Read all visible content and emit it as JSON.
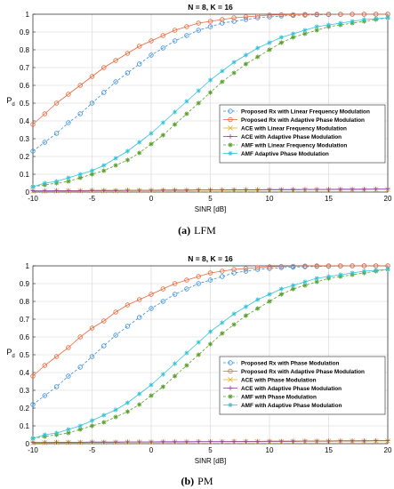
{
  "figure": {
    "captions": [
      {
        "label": "(a)",
        "text": "LFM"
      },
      {
        "label": "(b)",
        "text": "PM"
      }
    ]
  },
  "chart_data": [
    {
      "type": "line",
      "title": "N = 8, K = 16",
      "xlabel": "SINR [dB]",
      "ylabel": "P",
      "ylabel_subscript": "d",
      "xlim": [
        -10,
        20
      ],
      "ylim": [
        0,
        1
      ],
      "xticks": [
        -10,
        -5,
        0,
        5,
        10,
        15,
        20
      ],
      "yticks": [
        0,
        0.1,
        0.2,
        0.3,
        0.4,
        0.5,
        0.6,
        0.7,
        0.8,
        0.9,
        1
      ],
      "grid": true,
      "legend_position": "center-right",
      "x": [
        -10,
        -9,
        -8,
        -7,
        -6,
        -5,
        -4,
        -3,
        -2,
        -1,
        0,
        1,
        2,
        3,
        4,
        5,
        6,
        7,
        8,
        9,
        10,
        11,
        12,
        13,
        14,
        15,
        16,
        17,
        18,
        19,
        20
      ],
      "series": [
        {
          "name": "Proposed Rx with Linear Frequency Modulation",
          "color": "#3b8fd6",
          "marker": "circle",
          "dash": "3,2",
          "values": [
            0.23,
            0.28,
            0.33,
            0.39,
            0.44,
            0.5,
            0.56,
            0.62,
            0.67,
            0.72,
            0.77,
            0.81,
            0.85,
            0.88,
            0.91,
            0.93,
            0.95,
            0.96,
            0.97,
            0.98,
            0.985,
            0.99,
            0.993,
            0.995,
            0.997,
            0.998,
            0.999,
            1.0,
            1.0,
            1.0,
            1.0
          ]
        },
        {
          "name": "Proposed Rx with Adaptive Phase Modulation",
          "color": "#e8683a",
          "marker": "circle",
          "dash": "",
          "values": [
            0.38,
            0.44,
            0.5,
            0.55,
            0.6,
            0.65,
            0.7,
            0.74,
            0.78,
            0.82,
            0.85,
            0.88,
            0.91,
            0.93,
            0.95,
            0.96,
            0.97,
            0.98,
            0.985,
            0.99,
            0.995,
            0.997,
            0.998,
            0.999,
            1.0,
            1.0,
            1.0,
            1.0,
            1.0,
            1.0,
            1.0
          ]
        },
        {
          "name": "ACE with Linear Frequency Modulation",
          "color": "#e0b020",
          "marker": "cross",
          "dash": "",
          "values": [
            0.005,
            0.005,
            0.006,
            0.006,
            0.006,
            0.007,
            0.007,
            0.007,
            0.008,
            0.008,
            0.008,
            0.009,
            0.009,
            0.009,
            0.01,
            0.01,
            0.01,
            0.011,
            0.011,
            0.011,
            0.012,
            0.012,
            0.012,
            0.013,
            0.013,
            0.013,
            0.014,
            0.014,
            0.014,
            0.015,
            0.015
          ]
        },
        {
          "name": "ACE with Adaptive Phase Modulation",
          "color": "#8a3fa0",
          "marker": "plus",
          "dash": "",
          "values": [
            0.007,
            0.007,
            0.008,
            0.008,
            0.008,
            0.009,
            0.009,
            0.009,
            0.01,
            0.01,
            0.01,
            0.011,
            0.011,
            0.011,
            0.012,
            0.012,
            0.012,
            0.013,
            0.013,
            0.013,
            0.014,
            0.014,
            0.014,
            0.015,
            0.015,
            0.015,
            0.016,
            0.016,
            0.016,
            0.017,
            0.017
          ]
        },
        {
          "name": "AMF with Linear Frequency Modulation",
          "color": "#5aa02c",
          "marker": "star",
          "dash": "3,2",
          "values": [
            0.03,
            0.04,
            0.05,
            0.06,
            0.08,
            0.1,
            0.12,
            0.15,
            0.18,
            0.22,
            0.27,
            0.32,
            0.38,
            0.44,
            0.5,
            0.56,
            0.62,
            0.67,
            0.72,
            0.76,
            0.8,
            0.84,
            0.87,
            0.89,
            0.91,
            0.93,
            0.94,
            0.95,
            0.96,
            0.97,
            0.98
          ]
        },
        {
          "name": "AMF Adaptive Phase Modulation",
          "color": "#33c3d8",
          "marker": "asterisk",
          "dash": "",
          "values": [
            0.03,
            0.05,
            0.06,
            0.08,
            0.1,
            0.12,
            0.15,
            0.19,
            0.23,
            0.28,
            0.33,
            0.39,
            0.45,
            0.51,
            0.57,
            0.63,
            0.68,
            0.73,
            0.77,
            0.81,
            0.84,
            0.87,
            0.89,
            0.91,
            0.93,
            0.94,
            0.95,
            0.96,
            0.97,
            0.975,
            0.98
          ]
        }
      ]
    },
    {
      "type": "line",
      "title": "N = 8, K = 16",
      "xlabel": "SINR [dB]",
      "ylabel": "P",
      "ylabel_subscript": "d",
      "xlim": [
        -10,
        20
      ],
      "ylim": [
        0,
        1
      ],
      "xticks": [
        -10,
        -5,
        0,
        5,
        10,
        15,
        20
      ],
      "yticks": [
        0,
        0.1,
        0.2,
        0.3,
        0.4,
        0.5,
        0.6,
        0.7,
        0.8,
        0.9,
        1
      ],
      "grid": true,
      "legend_position": "center-right",
      "x": [
        -10,
        -9,
        -8,
        -7,
        -6,
        -5,
        -4,
        -3,
        -2,
        -1,
        0,
        1,
        2,
        3,
        4,
        5,
        6,
        7,
        8,
        9,
        10,
        11,
        12,
        13,
        14,
        15,
        16,
        17,
        18,
        19,
        20
      ],
      "series": [
        {
          "name": "Proposed Rx with Phase Modulation",
          "color": "#3b8fd6",
          "marker": "circle",
          "dash": "3,2",
          "values": [
            0.22,
            0.27,
            0.32,
            0.38,
            0.43,
            0.49,
            0.55,
            0.61,
            0.66,
            0.71,
            0.76,
            0.8,
            0.84,
            0.87,
            0.9,
            0.92,
            0.94,
            0.96,
            0.97,
            0.98,
            0.985,
            0.99,
            0.993,
            0.995,
            0.997,
            0.998,
            0.999,
            1.0,
            1.0,
            1.0,
            1.0
          ]
        },
        {
          "name": "Proposed Rx with Adaptive Phase Modulation",
          "color": "#e8683a",
          "marker": "circle",
          "dash": "",
          "values": [
            0.38,
            0.44,
            0.49,
            0.54,
            0.6,
            0.65,
            0.69,
            0.74,
            0.78,
            0.81,
            0.84,
            0.87,
            0.9,
            0.92,
            0.94,
            0.96,
            0.97,
            0.98,
            0.985,
            0.99,
            0.995,
            0.997,
            0.998,
            0.999,
            1.0,
            1.0,
            1.0,
            1.0,
            1.0,
            1.0,
            1.0
          ]
        },
        {
          "name": "ACE with Phase Modulation",
          "color": "#e0b020",
          "marker": "cross",
          "dash": "",
          "values": [
            0.005,
            0.005,
            0.006,
            0.006,
            0.006,
            0.007,
            0.007,
            0.007,
            0.008,
            0.008,
            0.008,
            0.009,
            0.009,
            0.009,
            0.01,
            0.01,
            0.01,
            0.011,
            0.011,
            0.011,
            0.012,
            0.012,
            0.012,
            0.013,
            0.013,
            0.013,
            0.014,
            0.014,
            0.014,
            0.015,
            0.015
          ]
        },
        {
          "name": "ACE with Adaptive Phase Modulation",
          "color": "#8a3fa0",
          "marker": "plus",
          "dash": "",
          "values": [
            0.007,
            0.007,
            0.008,
            0.008,
            0.008,
            0.009,
            0.009,
            0.009,
            0.01,
            0.01,
            0.01,
            0.011,
            0.011,
            0.011,
            0.012,
            0.012,
            0.012,
            0.013,
            0.013,
            0.013,
            0.014,
            0.014,
            0.014,
            0.015,
            0.015,
            0.015,
            0.016,
            0.016,
            0.016,
            0.017,
            0.017
          ]
        },
        {
          "name": "AMF with Phase Modulation",
          "color": "#5aa02c",
          "marker": "star",
          "dash": "3,2",
          "values": [
            0.03,
            0.04,
            0.05,
            0.06,
            0.08,
            0.1,
            0.12,
            0.15,
            0.18,
            0.22,
            0.27,
            0.32,
            0.38,
            0.44,
            0.5,
            0.56,
            0.62,
            0.67,
            0.72,
            0.76,
            0.8,
            0.84,
            0.87,
            0.89,
            0.91,
            0.93,
            0.94,
            0.95,
            0.96,
            0.97,
            0.98
          ]
        },
        {
          "name": "AMF with Adaptive Phase Modulation",
          "color": "#33c3d8",
          "marker": "asterisk",
          "dash": "",
          "values": [
            0.03,
            0.05,
            0.06,
            0.08,
            0.1,
            0.13,
            0.16,
            0.19,
            0.23,
            0.28,
            0.33,
            0.39,
            0.45,
            0.51,
            0.57,
            0.63,
            0.68,
            0.73,
            0.77,
            0.81,
            0.84,
            0.87,
            0.89,
            0.91,
            0.93,
            0.94,
            0.95,
            0.96,
            0.97,
            0.975,
            0.98
          ]
        }
      ]
    }
  ]
}
